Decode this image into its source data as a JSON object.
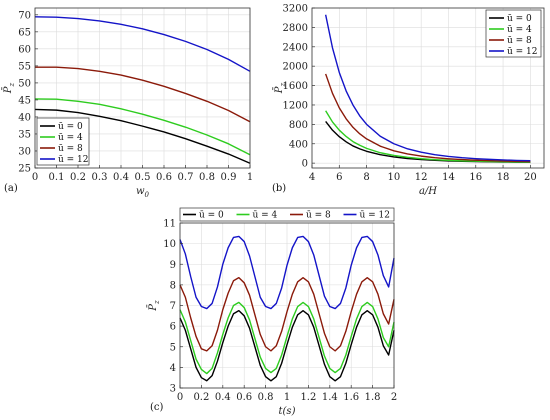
{
  "chart_data": [
    {
      "type": "line",
      "panel_label": "(a)",
      "xlabel": "w_0",
      "ylabel": "P̄_z",
      "xlim": [
        0,
        1
      ],
      "ylim": [
        25,
        72
      ],
      "xticks": [
        "0",
        "0.1",
        "0.2",
        "0.3",
        "0.4",
        "0.5",
        "0.6",
        "0.7",
        "0.8",
        "0.9",
        "1"
      ],
      "xtick_values": [
        0,
        0.1,
        0.2,
        0.3,
        0.4,
        0.5,
        0.6,
        0.7,
        0.8,
        0.9,
        1.0
      ],
      "yticks": [
        "25",
        "30",
        "35",
        "40",
        "45",
        "50",
        "55",
        "60",
        "65",
        "70"
      ],
      "ytick_values": [
        25,
        30,
        35,
        40,
        45,
        50,
        55,
        60,
        65,
        70
      ],
      "grid": true,
      "legend_position": "bottom-left",
      "x": [
        0,
        0.1,
        0.2,
        0.3,
        0.4,
        0.5,
        0.6,
        0.7,
        0.8,
        0.9,
        1.0
      ],
      "series": [
        {
          "name": "ū = 0",
          "color": "#000000",
          "values": [
            42.2,
            42.0,
            41.3,
            40.2,
            38.9,
            37.3,
            35.6,
            33.6,
            31.4,
            29.1,
            26.4
          ]
        },
        {
          "name": "ū = 4",
          "color": "#2ecc1f",
          "values": [
            45.3,
            45.2,
            44.6,
            43.7,
            42.4,
            40.8,
            39.0,
            37.0,
            34.7,
            32.1,
            28.9
          ]
        },
        {
          "name": "ū = 8",
          "color": "#8b1a0a",
          "values": [
            54.6,
            54.6,
            54.2,
            53.4,
            52.3,
            50.8,
            49.0,
            46.9,
            44.6,
            41.9,
            38.6
          ]
        },
        {
          "name": "ū = 12",
          "color": "#1414c8",
          "values": [
            69.4,
            69.3,
            68.9,
            68.2,
            67.2,
            65.9,
            64.2,
            62.2,
            59.8,
            56.9,
            53.4
          ]
        }
      ]
    },
    {
      "type": "line",
      "panel_label": "(b)",
      "xlabel": "a/H",
      "ylabel": "P̄_z",
      "xlim": [
        4,
        21
      ],
      "ylim": [
        -100,
        3200
      ],
      "xticks": [
        "4",
        "6",
        "8",
        "10",
        "12",
        "14",
        "16",
        "18",
        "20"
      ],
      "xtick_values": [
        4,
        6,
        8,
        10,
        12,
        14,
        16,
        18,
        20
      ],
      "yticks": [
        "0",
        "400",
        "800",
        "1200",
        "1600",
        "2000",
        "2400",
        "2800",
        "3200"
      ],
      "ytick_values": [
        0,
        400,
        800,
        1200,
        1600,
        2000,
        2400,
        2800,
        3200
      ],
      "grid": true,
      "legend_position": "top-right",
      "x": [
        5,
        5.5,
        6,
        6.5,
        7,
        7.5,
        8,
        9,
        10,
        11,
        12,
        13,
        14,
        15,
        16,
        17,
        18,
        19,
        20
      ],
      "series": [
        {
          "name": "ū = 0",
          "color": "#000000",
          "values": [
            860,
            680,
            545,
            440,
            355,
            295,
            245,
            175,
            128,
            96,
            74,
            58,
            46,
            38,
            32,
            28,
            24,
            21,
            19
          ]
        },
        {
          "name": "ū = 4",
          "color": "#2ecc1f",
          "values": [
            1080,
            850,
            680,
            550,
            445,
            370,
            305,
            215,
            160,
            120,
            92,
            72,
            58,
            47,
            40,
            34,
            29,
            26,
            23
          ]
        },
        {
          "name": "ū = 8",
          "color": "#8b1a0a",
          "values": [
            1840,
            1440,
            1140,
            915,
            740,
            605,
            500,
            350,
            255,
            190,
            145,
            113,
            90,
            73,
            61,
            52,
            44,
            38,
            34
          ]
        },
        {
          "name": "ū = 12",
          "color": "#1414c8",
          "values": [
            3060,
            2380,
            1870,
            1490,
            1200,
            975,
            800,
            555,
            400,
            295,
            225,
            175,
            138,
            112,
            93,
            78,
            66,
            57,
            50
          ]
        }
      ]
    },
    {
      "type": "line",
      "panel_label": "(c)",
      "xlabel": "t(s)",
      "ylabel": "P̄_z",
      "xlim": [
        0,
        2
      ],
      "ylim": [
        3,
        11
      ],
      "xticks": [
        "0",
        "0.2",
        "0.4",
        "0.6",
        "0.8",
        "1",
        "1.2",
        "1.4",
        "1.6",
        "1.8",
        "2"
      ],
      "xtick_values": [
        0,
        0.2,
        0.4,
        0.6,
        0.8,
        1.0,
        1.2,
        1.4,
        1.6,
        1.8,
        2.0
      ],
      "yticks": [
        "3",
        "4",
        "5",
        "6",
        "7",
        "8",
        "9",
        "10",
        "11"
      ],
      "ytick_values": [
        3,
        4,
        5,
        6,
        7,
        8,
        9,
        10,
        11
      ],
      "grid": true,
      "legend_position": "top-outside",
      "x": [
        0,
        0.05,
        0.1,
        0.15,
        0.2,
        0.25,
        0.3,
        0.35,
        0.4,
        0.45,
        0.5,
        0.55,
        0.6,
        0.65,
        0.7,
        0.75,
        0.8,
        0.85,
        0.9,
        0.95,
        1.0,
        1.05,
        1.1,
        1.15,
        1.2,
        1.25,
        1.3,
        1.35,
        1.4,
        1.45,
        1.5,
        1.55,
        1.6,
        1.65,
        1.7,
        1.75,
        1.8,
        1.85,
        1.9,
        1.95,
        2.0
      ],
      "series": [
        {
          "name": "ū = 0",
          "color": "#000000",
          "values": [
            6.4,
            5.8,
            4.9,
            4.0,
            3.5,
            3.35,
            3.6,
            4.3,
            5.2,
            6.0,
            6.6,
            6.75,
            6.5,
            5.9,
            5.0,
            4.1,
            3.55,
            3.35,
            3.55,
            4.2,
            5.1,
            5.95,
            6.55,
            6.75,
            6.55,
            5.95,
            5.05,
            4.15,
            3.55,
            3.35,
            3.55,
            4.2,
            5.1,
            5.95,
            6.55,
            6.75,
            6.55,
            5.95,
            5.05,
            4.6,
            5.8
          ]
        },
        {
          "name": "ū = 4",
          "color": "#2ecc1f",
          "values": [
            6.8,
            6.2,
            5.3,
            4.4,
            3.9,
            3.7,
            3.95,
            4.7,
            5.6,
            6.4,
            7.0,
            7.15,
            6.9,
            6.3,
            5.4,
            4.5,
            3.95,
            3.75,
            3.95,
            4.6,
            5.5,
            6.35,
            6.95,
            7.15,
            6.95,
            6.35,
            5.45,
            4.55,
            3.95,
            3.75,
            3.95,
            4.6,
            5.5,
            6.35,
            6.95,
            7.15,
            6.95,
            6.35,
            5.45,
            5.0,
            6.2
          ]
        },
        {
          "name": "ū = 8",
          "color": "#8b1a0a",
          "values": [
            8.0,
            7.4,
            6.4,
            5.5,
            4.9,
            4.8,
            5.05,
            5.8,
            6.8,
            7.6,
            8.2,
            8.35,
            8.1,
            7.5,
            6.55,
            5.6,
            5.0,
            4.8,
            5.05,
            5.75,
            6.7,
            7.55,
            8.15,
            8.35,
            8.15,
            7.55,
            6.6,
            5.65,
            5.0,
            4.8,
            5.05,
            5.75,
            6.7,
            7.55,
            8.15,
            8.35,
            8.15,
            7.55,
            6.6,
            6.1,
            7.3
          ]
        },
        {
          "name": "ū = 12",
          "color": "#1414c8",
          "values": [
            10.2,
            9.5,
            8.4,
            7.4,
            6.95,
            6.85,
            7.1,
            7.9,
            9.0,
            9.8,
            10.3,
            10.35,
            10.1,
            9.4,
            8.4,
            7.4,
            6.95,
            6.85,
            7.1,
            7.85,
            8.95,
            9.8,
            10.3,
            10.35,
            10.1,
            9.45,
            8.45,
            7.45,
            6.95,
            6.85,
            7.1,
            7.85,
            8.95,
            9.8,
            10.3,
            10.35,
            10.1,
            9.45,
            8.45,
            7.9,
            9.3
          ]
        }
      ]
    }
  ]
}
